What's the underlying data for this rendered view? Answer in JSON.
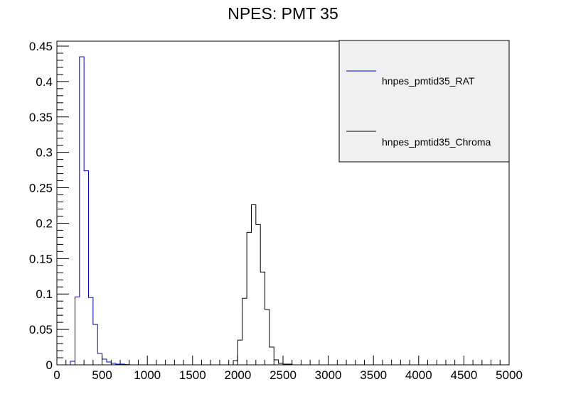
{
  "chart_data": {
    "type": "line",
    "title": "NPES: PMT 35",
    "xlabel": "",
    "ylabel": "",
    "xlim": [
      0,
      5000
    ],
    "ylim": [
      0,
      0.457
    ],
    "grid": false,
    "legend_position": "top-right",
    "x_ticks": [
      0,
      500,
      1000,
      1500,
      2000,
      2500,
      3000,
      3500,
      4000,
      4500,
      5000
    ],
    "x_tick_labels": [
      "0",
      "500",
      "1000",
      "1500",
      "2000",
      "2500",
      "3000",
      "3500",
      "4000",
      "4500",
      "5000"
    ],
    "y_ticks": [
      0,
      0.05,
      0.1,
      0.15,
      0.2,
      0.25,
      0.3,
      0.35,
      0.4,
      0.45
    ],
    "y_tick_labels": [
      "0",
      "0.05",
      "0.1",
      "0.15",
      "0.2",
      "0.25",
      "0.3",
      "0.35",
      "0.4",
      "0.45"
    ],
    "bin_width": 50,
    "series": [
      {
        "name": "hnpes_pmtid35_RAT",
        "color": "#0000cc",
        "bins": [
          [
            150,
            0.005
          ],
          [
            200,
            0.096
          ],
          [
            250,
            0.435
          ],
          [
            300,
            0.274
          ],
          [
            350,
            0.095
          ],
          [
            400,
            0.057
          ],
          [
            450,
            0.016
          ],
          [
            500,
            0.008
          ],
          [
            550,
            0.004
          ],
          [
            600,
            0.002
          ],
          [
            650,
            0.001
          ],
          [
            700,
            0.001
          ],
          [
            750,
            0.0005
          ]
        ]
      },
      {
        "name": "hnpes_pmtid35_Chroma",
        "color": "#000000",
        "bins": [
          [
            1950,
            0.006
          ],
          [
            2000,
            0.035
          ],
          [
            2050,
            0.094
          ],
          [
            2100,
            0.187
          ],
          [
            2150,
            0.226
          ],
          [
            2200,
            0.198
          ],
          [
            2250,
            0.131
          ],
          [
            2300,
            0.078
          ],
          [
            2350,
            0.025
          ],
          [
            2400,
            0.007
          ],
          [
            2450,
            0.002
          ],
          [
            2500,
            0.001
          ],
          [
            2550,
            0.001
          ]
        ]
      }
    ]
  }
}
